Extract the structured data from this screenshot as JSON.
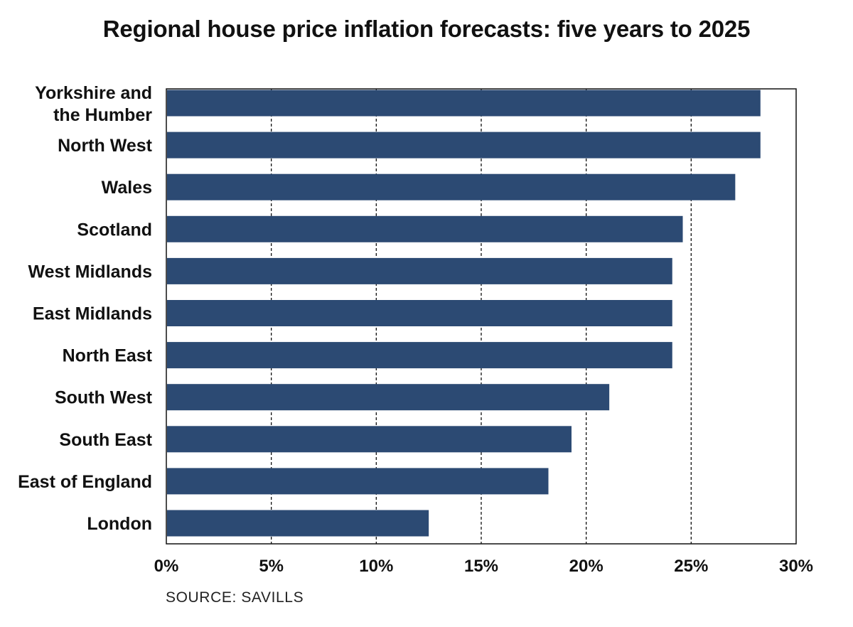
{
  "chart_data": {
    "type": "bar",
    "orientation": "horizontal",
    "title": "Regional house price inflation forecasts: five years to 2025",
    "categories": [
      "Yorkshire and the Humber",
      "North West",
      "Wales",
      "Scotland",
      "West Midlands",
      "East Midlands",
      "North East",
      "South West",
      "South East",
      "East of England",
      "London"
    ],
    "values": [
      28.3,
      28.3,
      27.1,
      24.6,
      24.1,
      24.1,
      24.1,
      21.1,
      19.3,
      18.2,
      12.5
    ],
    "unit": "%",
    "xlabel": "",
    "ylabel": "",
    "xlim": [
      0,
      30
    ],
    "ticks": [
      0,
      5,
      10,
      15,
      20,
      25,
      30
    ],
    "tick_labels": [
      "0%",
      "5%",
      "10%",
      "15%",
      "20%",
      "25%",
      "30%"
    ],
    "grid": "vertical dashed",
    "bar_color": "#2c4a73",
    "source": "SOURCE: SAVILLS"
  }
}
